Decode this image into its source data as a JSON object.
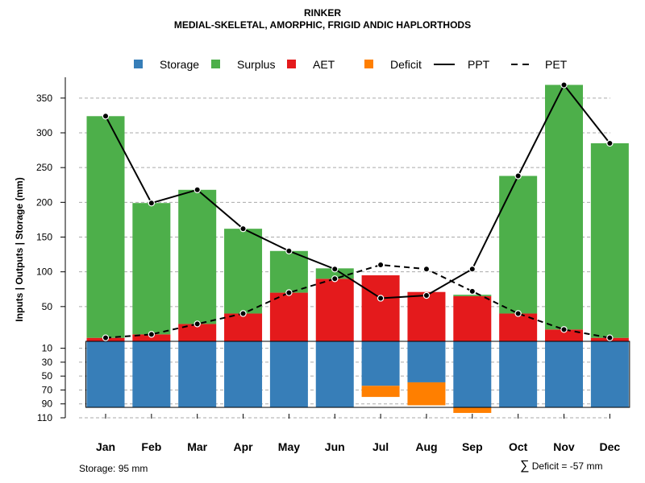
{
  "title": "RINKER",
  "subtitle": "MEDIAL-SKELETAL, AMORPHIC, FRIGID ANDIC HAPLORTHODS",
  "ylabel": "Inputs | Outputs | Storage    (mm)",
  "storage_note": "Storage: 95 mm",
  "deficit_symbol": "∑",
  "deficit_note": "Deficit = -57 mm",
  "colors": {
    "storage": "#377EB8",
    "surplus": "#4DAF4A",
    "aet": "#E41A1C",
    "deficit": "#FF7F00",
    "line": "#000000",
    "grid": "#aaaaaa"
  },
  "chart_data": {
    "type": "bar",
    "categories": [
      "Jan",
      "Feb",
      "Mar",
      "Apr",
      "May",
      "Jun",
      "Jul",
      "Aug",
      "Sep",
      "Oct",
      "Nov",
      "Dec"
    ],
    "legend": [
      {
        "key": "storage",
        "label": "Storage",
        "kind": "box"
      },
      {
        "key": "surplus",
        "label": "Surplus",
        "kind": "box"
      },
      {
        "key": "aet",
        "label": "AET",
        "kind": "box"
      },
      {
        "key": "deficit",
        "label": "Deficit",
        "kind": "box"
      },
      {
        "key": "ppt",
        "label": "PPT",
        "kind": "solid"
      },
      {
        "key": "pet",
        "label": "PET",
        "kind": "dashed"
      }
    ],
    "upper_axis": {
      "ticks": [
        50,
        100,
        150,
        200,
        250,
        300,
        350
      ],
      "range": [
        0,
        380
      ]
    },
    "lower_axis": {
      "ticks": [
        10,
        30,
        50,
        70,
        90,
        110
      ],
      "range": [
        0,
        110
      ]
    },
    "series": [
      {
        "name": "AET",
        "values": [
          5,
          10,
          25,
          40,
          70,
          90,
          95,
          71,
          65,
          40,
          17,
          5
        ]
      },
      {
        "name": "Surplus",
        "values": [
          319,
          189,
          193,
          122,
          60,
          15,
          0,
          0,
          2,
          198,
          352,
          280
        ]
      },
      {
        "name": "PPT",
        "values": [
          324,
          199,
          218,
          162,
          130,
          104,
          62,
          66,
          104,
          238,
          369,
          285
        ]
      },
      {
        "name": "PET",
        "values": [
          5,
          10,
          25,
          40,
          70,
          90,
          110,
          104,
          72,
          40,
          17,
          5
        ]
      },
      {
        "name": "Storage",
        "values": [
          95,
          95,
          95,
          95,
          95,
          95,
          64,
          59,
          95,
          95,
          95,
          95
        ]
      },
      {
        "name": "Deficit",
        "values": [
          0,
          0,
          0,
          0,
          0,
          0,
          16,
          33,
          8,
          0,
          0,
          0
        ]
      }
    ]
  }
}
